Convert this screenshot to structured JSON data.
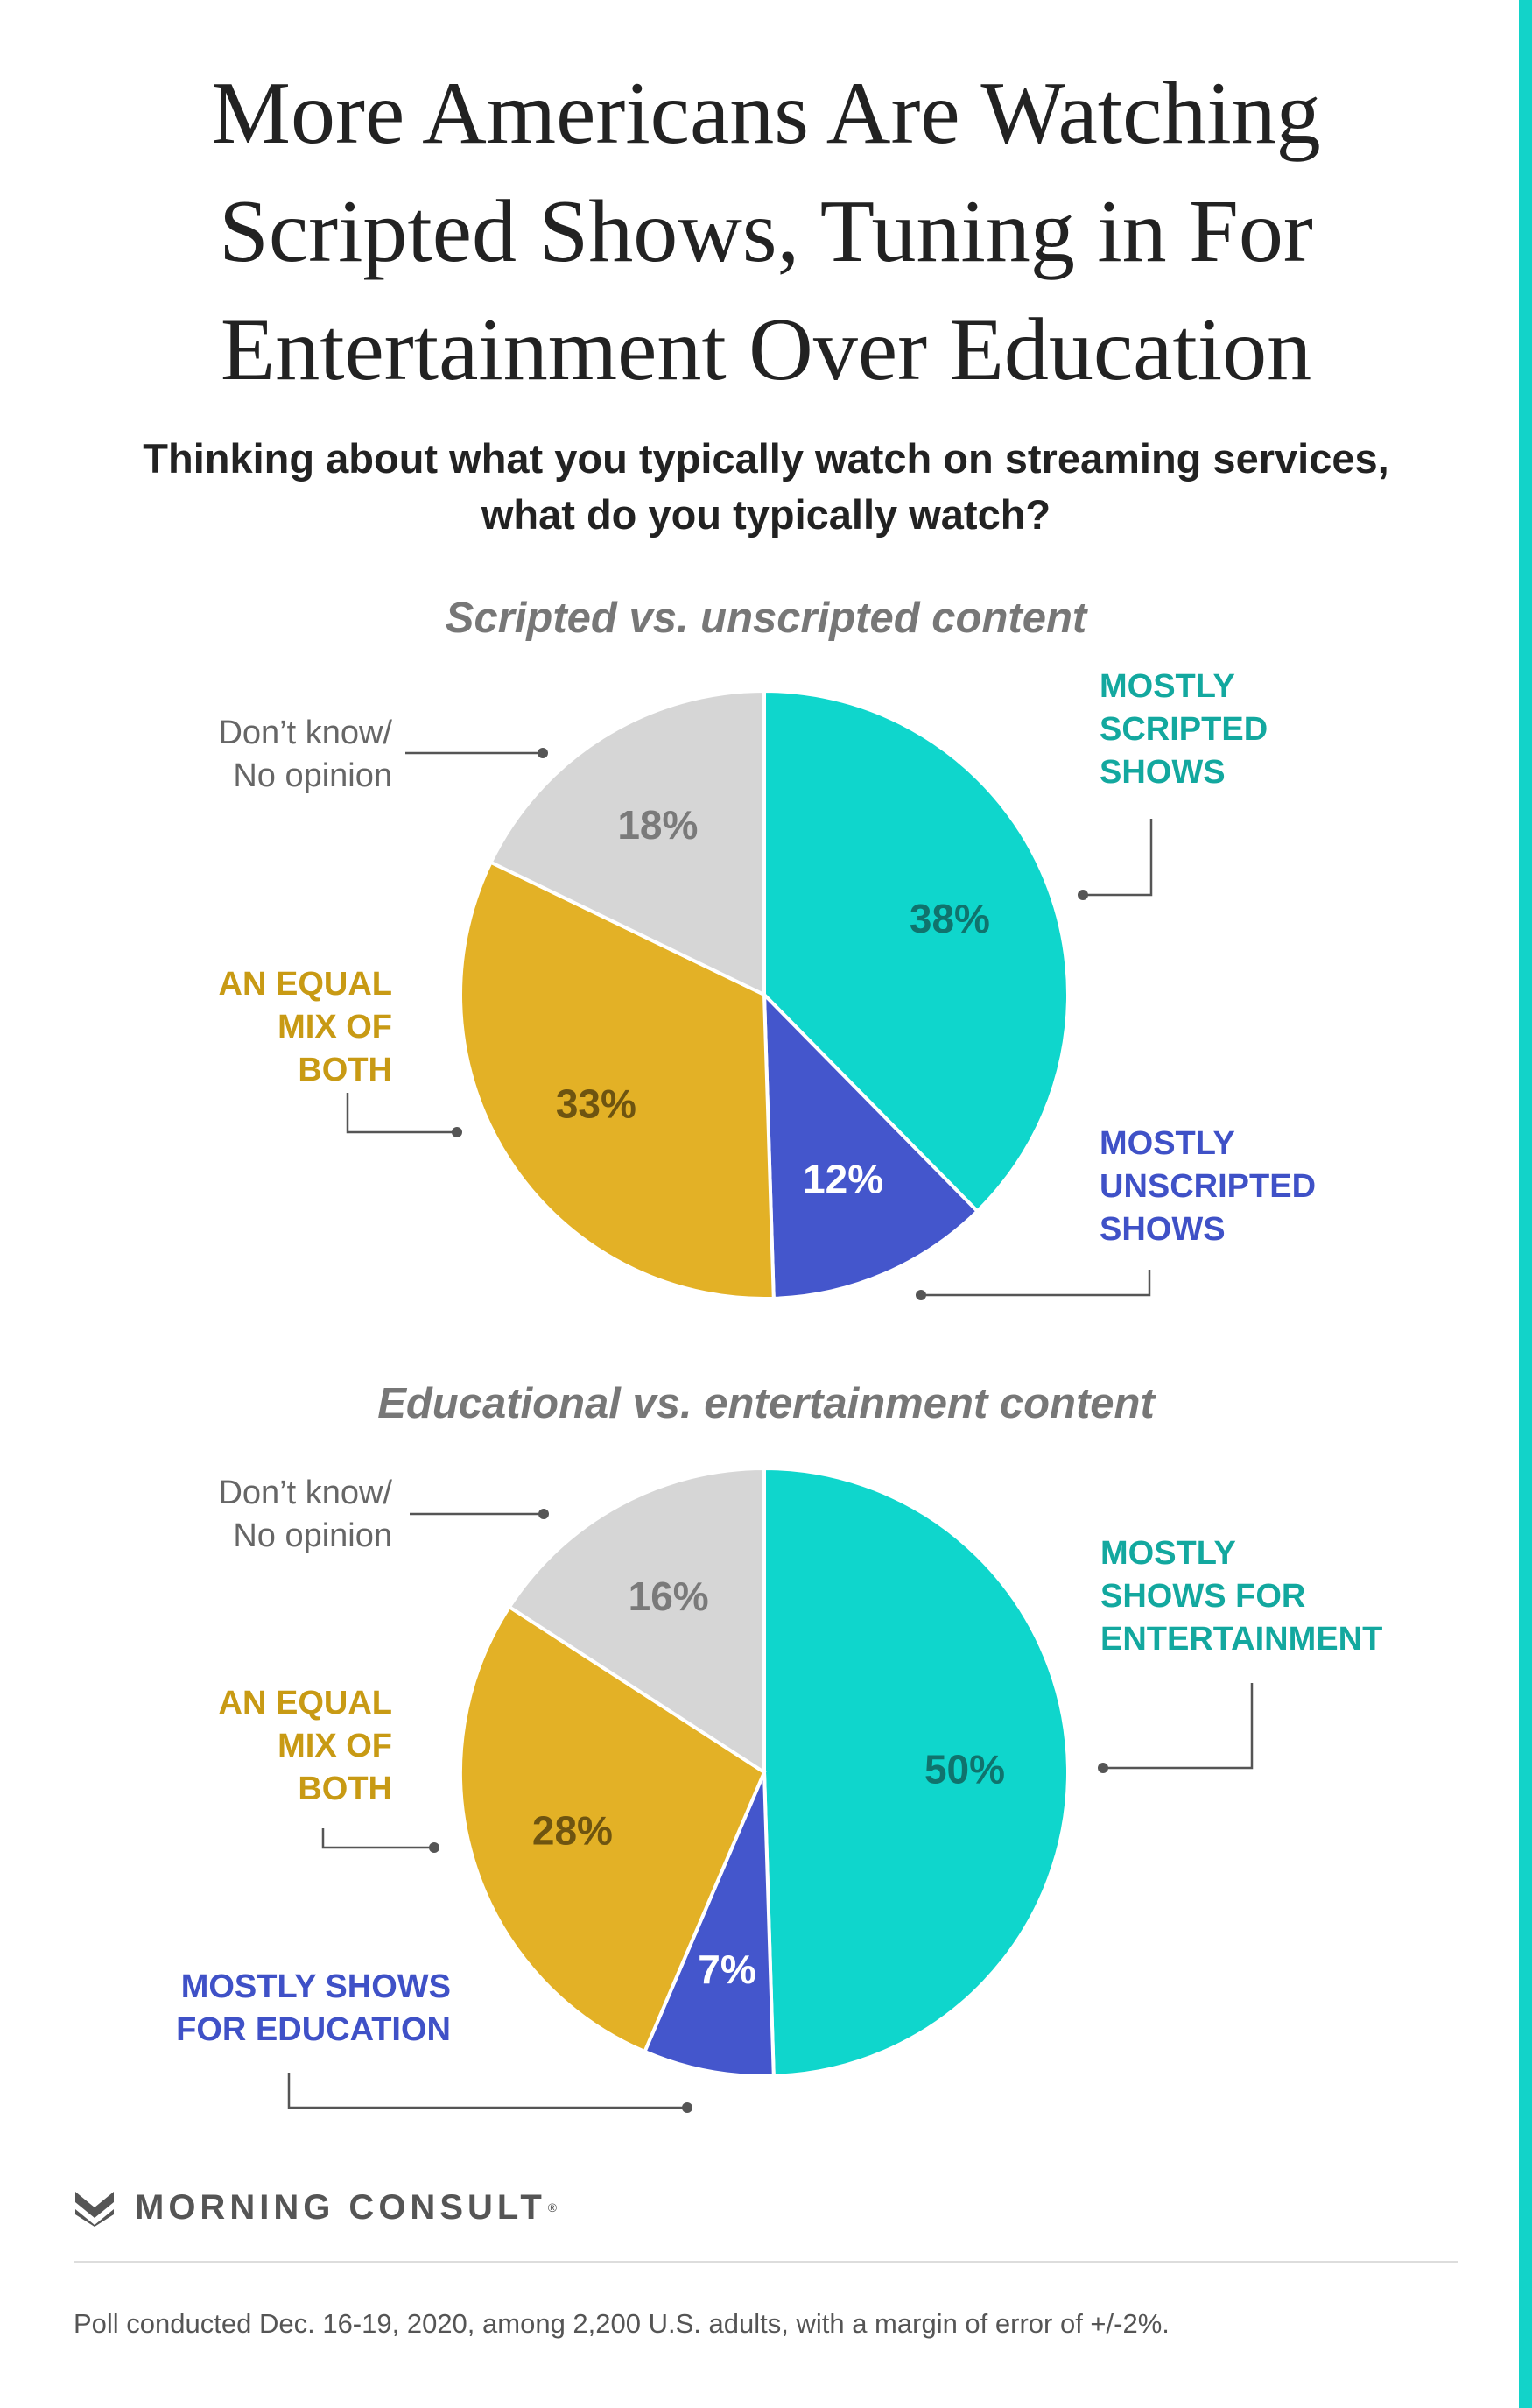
{
  "title": "More Americans Are Watching Scripted Shows, Tuning in For Entertainment Over Education",
  "subtitle": "Thinking about what you typically watch on streaming services, what do you typically watch?",
  "chart_data": [
    {
      "type": "pie",
      "title": "Scripted vs. unscripted content",
      "slices": [
        {
          "label": "MOSTLY SCRIPTED SHOWS",
          "value": 38,
          "display": "38%",
          "color": "#0fd6cc",
          "text_color": "#10736d",
          "label_color": "#13a89f"
        },
        {
          "label": "MOSTLY UNSCRIPTED SHOWS",
          "value": 12,
          "display": "12%",
          "color": "#4456cc",
          "text_color": "#ffffff",
          "label_color": "#3f51c7"
        },
        {
          "label": "AN EQUAL MIX OF BOTH",
          "value": 33,
          "display": "33%",
          "color": "#e3b126",
          "text_color": "#6e5410",
          "label_color": "#c89a14"
        },
        {
          "label": "Don’t know/ No opinion",
          "value": 18,
          "display": "18%",
          "color": "#d6d6d6",
          "text_color": "#7a7a7a",
          "label_color": "#666666"
        }
      ]
    },
    {
      "type": "pie",
      "title": "Educational vs. entertainment content",
      "slices": [
        {
          "label": "MOSTLY SHOWS FOR ENTERTAINMENT",
          "value": 50,
          "display": "50%",
          "color": "#0fd6cc",
          "text_color": "#10736d",
          "label_color": "#13a89f"
        },
        {
          "label": "MOSTLY SHOWS FOR EDUCATION",
          "value": 7,
          "display": "7%",
          "color": "#4456cc",
          "text_color": "#ffffff",
          "label_color": "#3f51c7"
        },
        {
          "label": "AN EQUAL MIX OF BOTH",
          "value": 28,
          "display": "28%",
          "color": "#e3b126",
          "text_color": "#6e5410",
          "label_color": "#c89a14"
        },
        {
          "label": "Don’t know/ No opinion",
          "value": 16,
          "display": "16%",
          "color": "#d6d6d6",
          "text_color": "#7a7a7a",
          "label_color": "#666666"
        }
      ]
    }
  ],
  "labels": {
    "c1_scripted": [
      "MOSTLY",
      "SCRIPTED",
      "SHOWS"
    ],
    "c1_unscripted": [
      "MOSTLY",
      "UNSCRIPTED",
      "SHOWS"
    ],
    "c1_mix": [
      "AN EQUAL",
      "MIX OF",
      "BOTH"
    ],
    "c1_dk": [
      "Don’t know/",
      "No opinion"
    ],
    "c2_entertainment": [
      "MOSTLY",
      "SHOWS FOR",
      "ENTERTAINMENT"
    ],
    "c2_education": [
      "MOSTLY SHOWS",
      "FOR EDUCATION"
    ],
    "c2_mix": [
      "AN EQUAL",
      "MIX OF",
      "BOTH"
    ],
    "c2_dk": [
      "Don’t know/",
      "No opinion"
    ]
  },
  "logo": {
    "text": "MORNING CONSULT",
    "trademark": "®",
    "icon": "morning-consult-logo-icon",
    "color": "#555555"
  },
  "footer": "Poll conducted Dec. 16-19, 2020, among 2,200 U.S. adults, with a margin of error of +/-2%.",
  "accent_color": "#12d3c9"
}
